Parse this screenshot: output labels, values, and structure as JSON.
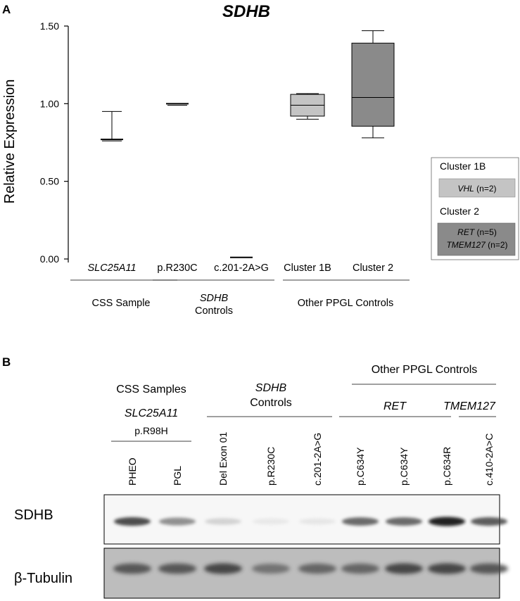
{
  "panel_a": {
    "label": "A",
    "chart_data": {
      "type": "box",
      "title": "SDHB",
      "ylabel": "Relative Expression",
      "ylim": [
        0,
        1.5
      ],
      "yticks": [
        "0.00",
        "0.50",
        "1.00",
        "1.50"
      ],
      "categories": [
        {
          "label": "SLC25A11",
          "italic": true,
          "stats": {
            "whisker_low": 0.76,
            "q1": 0.76,
            "median": 0.77,
            "q3": 0.77,
            "whisker_high": 0.95
          },
          "style": "line"
        },
        {
          "label": "p.R230C",
          "italic": false,
          "stats": {
            "whisker_low": 0.99,
            "q1": 0.995,
            "median": 1.0,
            "q3": 1.0,
            "whisker_high": 1.005
          },
          "style": "line"
        },
        {
          "label": "c.201-2A>G",
          "italic": false,
          "stats": {
            "whisker_low": 0.01,
            "q1": 0.01,
            "median": 0.01,
            "q3": 0.01,
            "whisker_high": 0.01
          },
          "style": "line"
        },
        {
          "label": "Cluster 1B",
          "italic": false,
          "stats": {
            "whisker_low": 0.9,
            "q1": 0.92,
            "median": 0.99,
            "q3": 1.06,
            "whisker_high": 1.065
          },
          "style": "box",
          "color": "#c4c4c4"
        },
        {
          "label": "Cluster 2",
          "italic": false,
          "stats": {
            "whisker_low": 0.78,
            "q1": 0.855,
            "median": 1.04,
            "q3": 1.39,
            "whisker_high": 1.47
          },
          "style": "box",
          "color": "#8a8a8a"
        }
      ],
      "groups": [
        {
          "label": "CSS Sample",
          "lines": [
            "CSS Sample"
          ]
        },
        {
          "label": "SDHB Controls",
          "lines": [
            "SDHB",
            "Controls"
          ]
        },
        {
          "label": "Other PPGL Controls",
          "lines": [
            "Other PPGL Controls"
          ]
        }
      ]
    },
    "legend": {
      "cluster1b_title": "Cluster 1B",
      "cluster1b_gene": "VHL",
      "cluster1b_n": " (n=2)",
      "cluster2_title": "Cluster 2",
      "cluster2_gene1": "RET",
      "cluster2_n1": " (n=5)",
      "cluster2_gene2": "TMEM127",
      "cluster2_n2": " (n=2)",
      "color_1b": "#c4c4c4",
      "color_2": "#8a8a8a"
    }
  },
  "panel_b": {
    "label": "B",
    "header_css": "CSS Samples",
    "header_slc": "SLC25A11",
    "header_r98h": "p.R98H",
    "header_sdhb": "SDHB",
    "header_controls": "Controls",
    "header_other": "Other PPGL Controls",
    "header_ret": "RET",
    "header_tmem": "TMEM127",
    "lanes": [
      "PHEO",
      "PGL",
      "Del Exon 01",
      "p.R230C",
      "c.201-2A>G",
      "p.C634Y",
      "p.C634Y",
      "p.C634R",
      "c.410-2A>C"
    ],
    "blot_sdhb_label": "SDHB",
    "blot_tubulin_label": "β-Tubulin",
    "sdhb_intensity": [
      0.85,
      0.6,
      0.25,
      0.08,
      0.1,
      0.75,
      0.75,
      1.0,
      0.8
    ],
    "tubulin_intensity": [
      0.7,
      0.7,
      0.8,
      0.5,
      0.6,
      0.6,
      0.8,
      0.8,
      0.7
    ]
  }
}
